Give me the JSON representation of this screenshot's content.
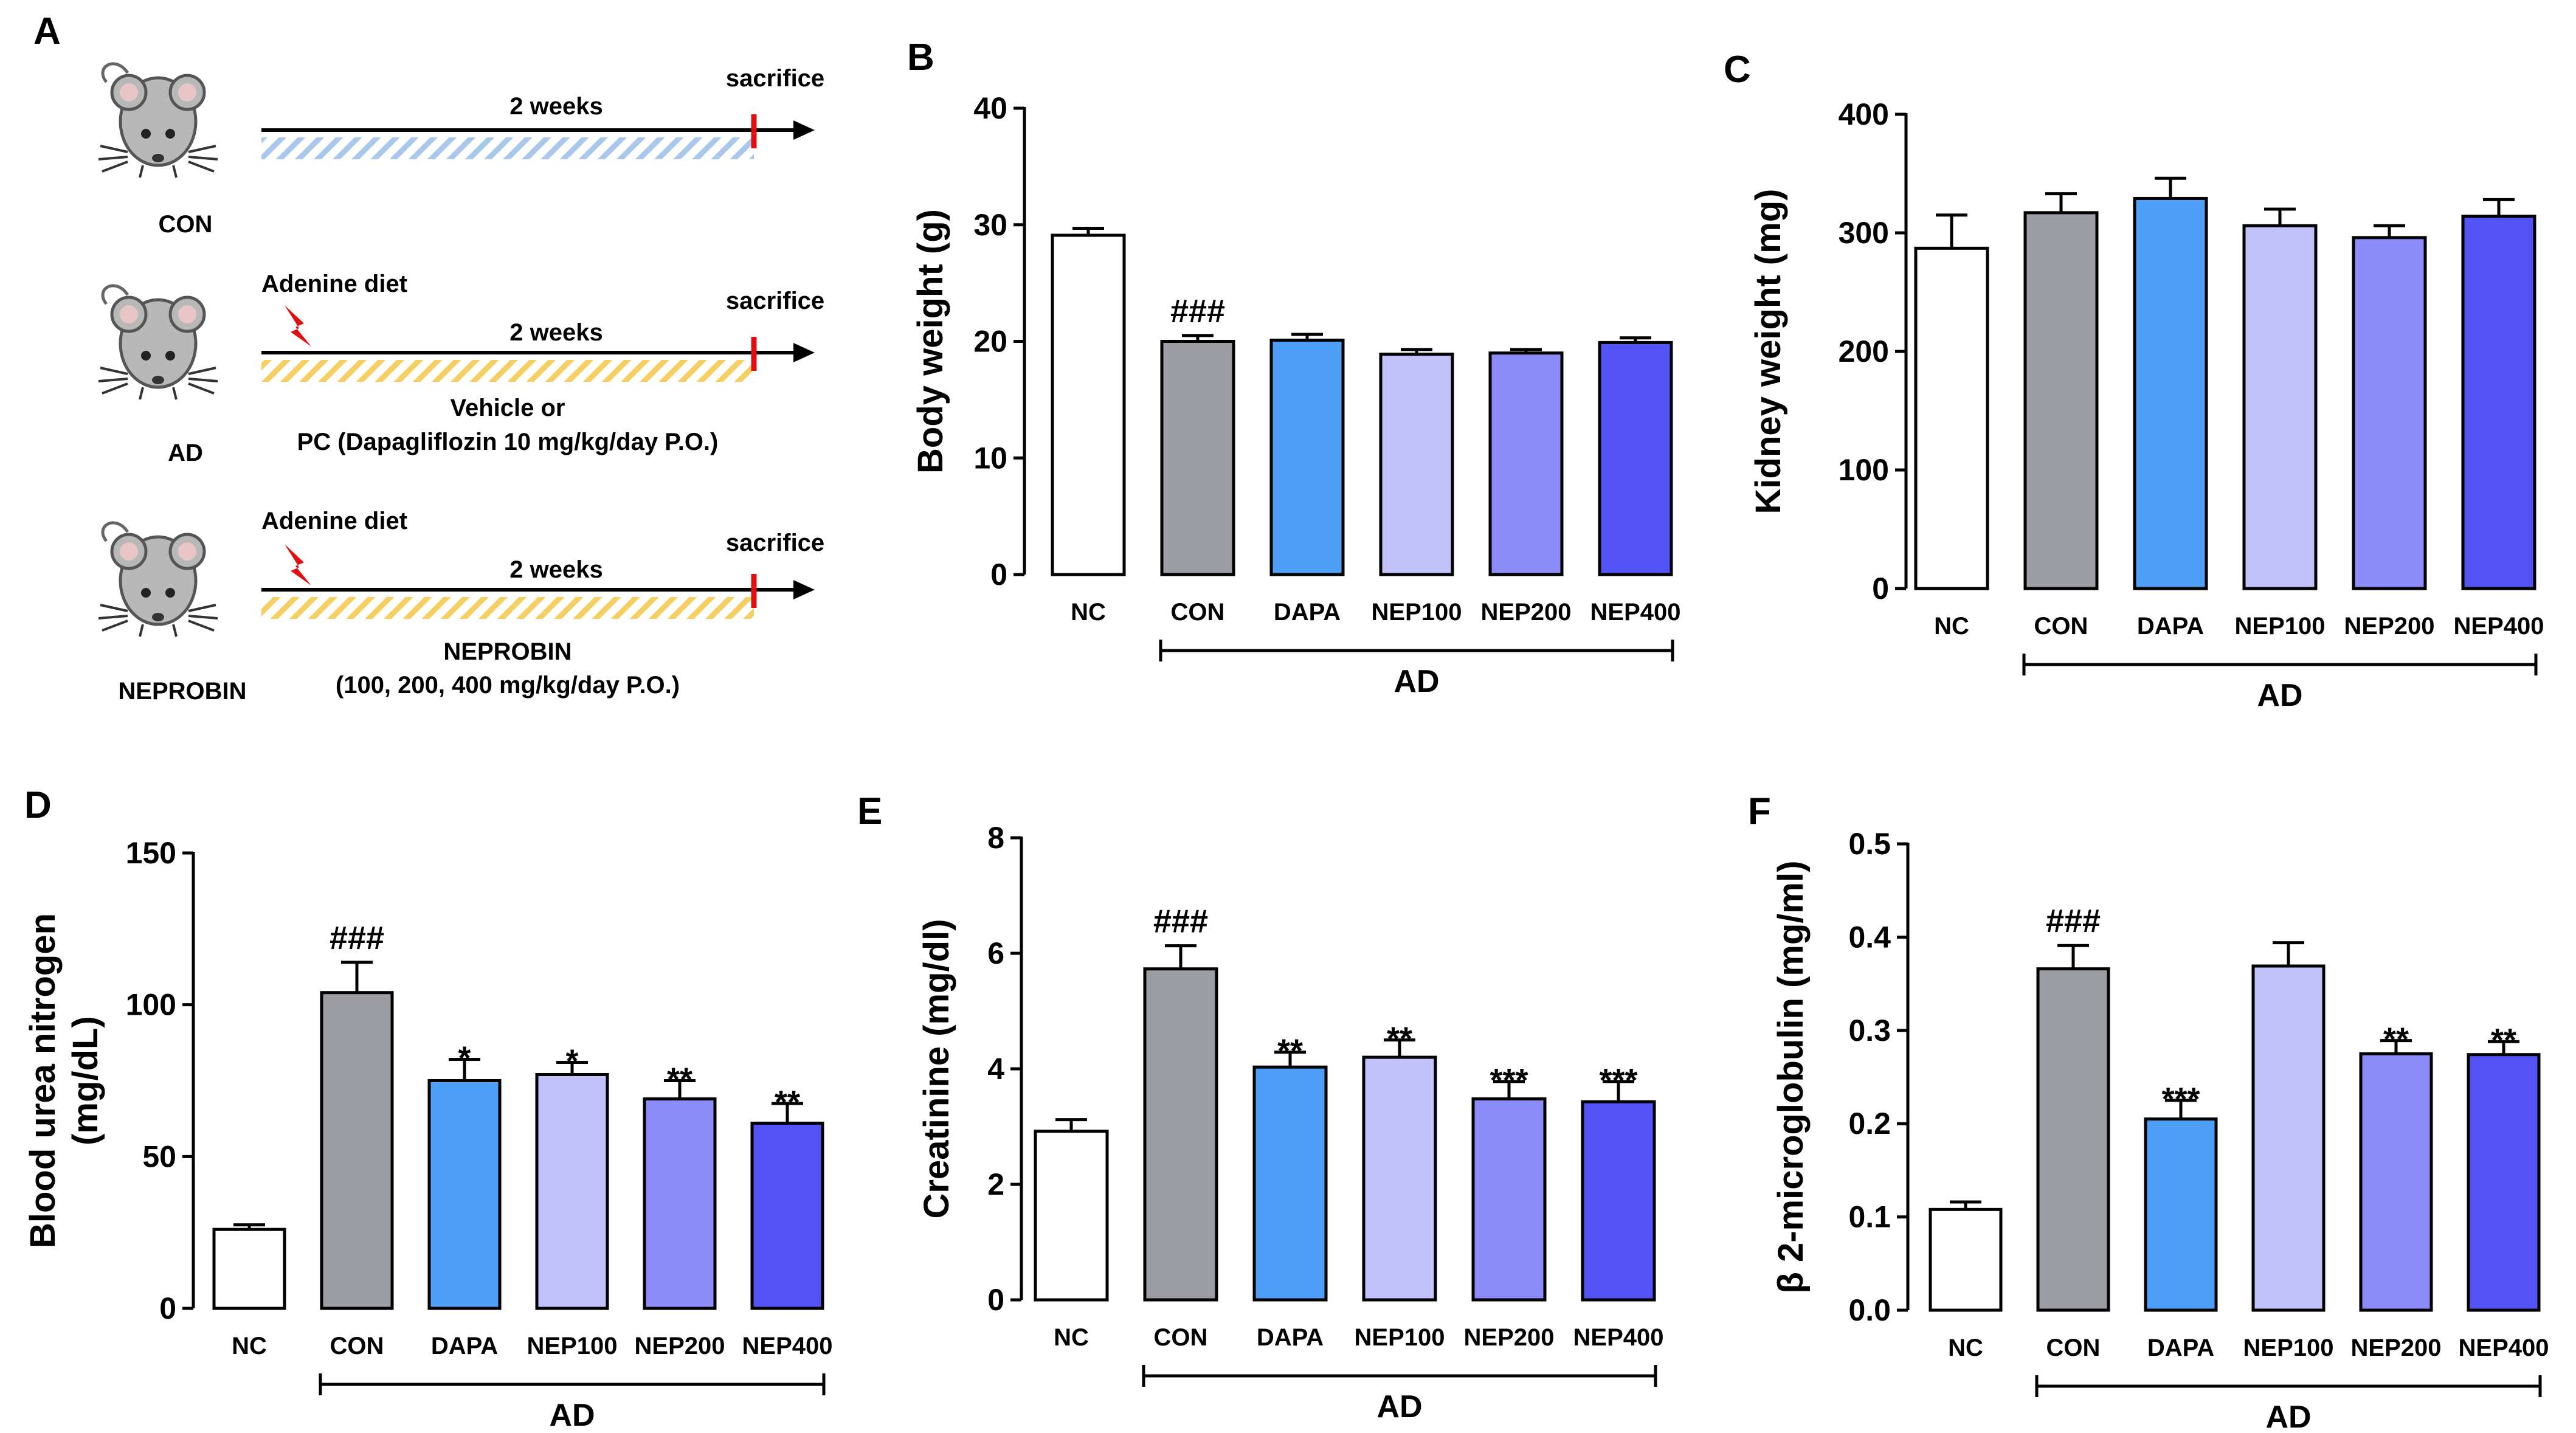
{
  "panel_a": {
    "label": "A",
    "rows": [
      {
        "group": "CON",
        "timeline": "2 weeks",
        "end_label": "sacrifice",
        "hatch_color": "#a9c8ec"
      },
      {
        "group": "AD",
        "diet": "Adenine diet",
        "timeline": "2 weeks",
        "end_label": "sacrifice",
        "treatment_line1": "Vehicle or",
        "treatment_line2": "PC (Dapagliflozin 10 mg/kg/day P.O.)",
        "hatch_color": "#f6cf63"
      },
      {
        "group": "NEPROBIN",
        "diet": "Adenine diet",
        "timeline": "2 weeks",
        "end_label": "sacrifice",
        "treatment_line1": "NEPROBIN",
        "treatment_line2": "(100, 200, 400 mg/kg/day P.O.)",
        "hatch_color": "#f6cf63"
      }
    ]
  },
  "colors": {
    "NC": "#ffffff",
    "CON": "#9d9ea3",
    "DAPA": "#4e9ff7",
    "NEP100": "#c2c2fb",
    "NEP200": "#8c8cfb",
    "NEP400": "#5353f6"
  },
  "chart_data": [
    {
      "panel": "B",
      "type": "bar",
      "ylabel": "Body weight (g)",
      "categories": [
        "NC",
        "CON",
        "DAPA",
        "NEP100",
        "NEP200",
        "NEP400"
      ],
      "values": [
        29.1,
        20.0,
        20.1,
        18.9,
        19.0,
        19.9
      ],
      "errors": [
        0.6,
        0.5,
        0.5,
        0.4,
        0.3,
        0.4
      ],
      "ylim": [
        0,
        40
      ],
      "yticks": [
        0,
        10,
        20,
        30,
        40
      ],
      "tick_labels": [
        "0",
        "10",
        "20",
        "30",
        "40"
      ],
      "annotations": [
        "",
        "###",
        "",
        "",
        "",
        ""
      ],
      "group_label": "AD"
    },
    {
      "panel": "C",
      "type": "bar",
      "ylabel": "Kidney weight (mg)",
      "categories": [
        "NC",
        "CON",
        "DAPA",
        "NEP100",
        "NEP200",
        "NEP400"
      ],
      "values": [
        287,
        317,
        329,
        306,
        296,
        314
      ],
      "errors": [
        28,
        16,
        17,
        14,
        10,
        14
      ],
      "ylim": [
        0,
        400
      ],
      "yticks": [
        0,
        100,
        200,
        300,
        400
      ],
      "tick_labels": [
        "0",
        "100",
        "200",
        "300",
        "400"
      ],
      "annotations": [
        "",
        "",
        "",
        "",
        "",
        ""
      ],
      "group_label": "AD"
    },
    {
      "panel": "D",
      "type": "bar",
      "ylabel_line1": "Blood urea nitrogen",
      "ylabel_line2": "(mg/dL)",
      "categories": [
        "NC",
        "CON",
        "DAPA",
        "NEP100",
        "NEP200",
        "NEP400"
      ],
      "values": [
        26,
        104,
        75,
        77,
        69,
        61
      ],
      "errors": [
        1.5,
        10,
        7,
        4,
        6,
        6.5
      ],
      "ylim": [
        0,
        150
      ],
      "yticks": [
        0,
        50,
        100,
        150
      ],
      "tick_labels": [
        "0",
        "50",
        "100",
        "150"
      ],
      "annotations": [
        "",
        "###",
        "*",
        "*",
        "**",
        "**"
      ],
      "group_label": "AD"
    },
    {
      "panel": "E",
      "type": "bar",
      "ylabel": "Creatinine (mg/dl)",
      "categories": [
        "NC",
        "CON",
        "DAPA",
        "NEP100",
        "NEP200",
        "NEP400"
      ],
      "values": [
        2.92,
        5.73,
        4.03,
        4.2,
        3.48,
        3.43
      ],
      "errors": [
        0.2,
        0.4,
        0.26,
        0.3,
        0.3,
        0.35
      ],
      "ylim": [
        0,
        8
      ],
      "yticks": [
        0,
        2,
        4,
        6,
        8
      ],
      "tick_labels": [
        "0",
        "2",
        "4",
        "6",
        "8"
      ],
      "annotations": [
        "",
        "###",
        "**",
        "**",
        "***",
        "***"
      ],
      "group_label": "AD"
    },
    {
      "panel": "F",
      "type": "bar",
      "ylabel": "β 2-microglobulin  (mg/ml)",
      "categories": [
        "NC",
        "CON",
        "DAPA",
        "NEP100",
        "NEP200",
        "NEP400"
      ],
      "values": [
        0.108,
        0.366,
        0.205,
        0.369,
        0.275,
        0.274
      ],
      "errors": [
        0.008,
        0.025,
        0.02,
        0.025,
        0.014,
        0.014
      ],
      "ylim": [
        0,
        0.5
      ],
      "yticks": [
        0,
        0.1,
        0.2,
        0.3,
        0.4,
        0.5
      ],
      "tick_labels": [
        "0.0",
        "0.1",
        "0.2",
        "0.3",
        "0.4",
        "0.5"
      ],
      "annotations": [
        "",
        "###",
        "***",
        "",
        "**",
        "**"
      ],
      "group_label": "AD"
    }
  ]
}
